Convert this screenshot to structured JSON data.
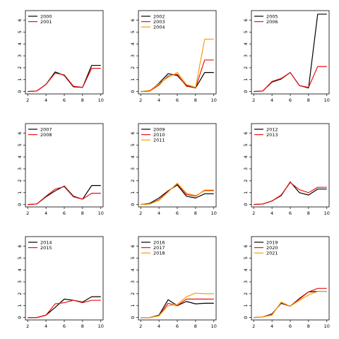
{
  "chart_data": [
    {
      "type": "line",
      "x": [
        2,
        3,
        4,
        5,
        6,
        7,
        8,
        9,
        10
      ],
      "xlim": [
        1.75,
        10.25
      ],
      "ylim": [
        -0.2,
        6.8
      ],
      "x_ticks": [
        2,
        4,
        6,
        8,
        10
      ],
      "y_ticks": [
        0,
        1,
        2,
        3,
        4,
        5,
        6
      ],
      "legend_position": "top-left",
      "series": [
        {
          "name": "2000",
          "color": "#000000",
          "values": [
            0.0,
            0.05,
            0.6,
            1.65,
            1.35,
            0.4,
            0.35,
            2.2,
            2.2
          ]
        },
        {
          "name": "2001",
          "color": "#ee1111",
          "values": [
            0.0,
            0.05,
            0.6,
            1.55,
            1.4,
            0.45,
            0.35,
            1.95,
            1.95
          ]
        }
      ]
    },
    {
      "type": "line",
      "x": [
        2,
        3,
        4,
        5,
        6,
        7,
        8,
        9,
        10
      ],
      "xlim": [
        1.75,
        10.25
      ],
      "ylim": [
        -0.2,
        6.8
      ],
      "x_ticks": [
        2,
        4,
        6,
        8,
        10
      ],
      "y_ticks": [
        0,
        1,
        2,
        3,
        4,
        5,
        6
      ],
      "legend_position": "top-left",
      "series": [
        {
          "name": "2002",
          "color": "#000000",
          "values": [
            0.0,
            0.05,
            0.7,
            1.5,
            1.35,
            0.5,
            0.3,
            1.6,
            1.6
          ]
        },
        {
          "name": "2003",
          "color": "#ee1111",
          "values": [
            0.0,
            0.05,
            0.55,
            1.3,
            1.45,
            0.45,
            0.3,
            2.65,
            2.65
          ]
        },
        {
          "name": "2004",
          "color": "#f5a000",
          "values": [
            0.0,
            0.1,
            0.65,
            1.2,
            1.6,
            0.6,
            0.35,
            4.4,
            4.4
          ]
        }
      ]
    },
    {
      "type": "line",
      "x": [
        2,
        3,
        4,
        5,
        6,
        7,
        8,
        9,
        10
      ],
      "xlim": [
        1.75,
        10.25
      ],
      "ylim": [
        -0.2,
        6.8
      ],
      "x_ticks": [
        2,
        4,
        6,
        8,
        10
      ],
      "y_ticks": [
        0,
        1,
        2,
        3,
        4,
        5,
        6
      ],
      "legend_position": "top-left",
      "series": [
        {
          "name": "2005",
          "color": "#000000",
          "values": [
            0.0,
            0.05,
            0.8,
            1.05,
            1.6,
            0.5,
            0.3,
            6.5,
            6.5
          ]
        },
        {
          "name": "2006",
          "color": "#ee1111",
          "values": [
            0.0,
            0.05,
            0.85,
            1.1,
            1.6,
            0.5,
            0.35,
            2.1,
            2.1
          ]
        }
      ]
    },
    {
      "type": "line",
      "x": [
        2,
        3,
        4,
        5,
        6,
        7,
        8,
        9,
        10
      ],
      "xlim": [
        1.75,
        10.25
      ],
      "ylim": [
        -0.2,
        6.8
      ],
      "x_ticks": [
        2,
        4,
        6,
        8,
        10
      ],
      "y_ticks": [
        0,
        1,
        2,
        3,
        4,
        5,
        6
      ],
      "legend_position": "top-left",
      "series": [
        {
          "name": "2007",
          "color": "#000000",
          "values": [
            0.0,
            0.05,
            0.65,
            1.15,
            1.55,
            0.7,
            0.45,
            1.6,
            1.6
          ]
        },
        {
          "name": "2008",
          "color": "#ee1111",
          "values": [
            0.0,
            0.05,
            0.7,
            1.3,
            1.5,
            0.65,
            0.45,
            0.95,
            0.95
          ]
        }
      ]
    },
    {
      "type": "line",
      "x": [
        2,
        3,
        4,
        5,
        6,
        7,
        8,
        9,
        10
      ],
      "xlim": [
        1.75,
        10.25
      ],
      "ylim": [
        -0.2,
        6.8
      ],
      "x_ticks": [
        2,
        4,
        6,
        8,
        10
      ],
      "y_ticks": [
        0,
        1,
        2,
        3,
        4,
        5,
        6
      ],
      "legend_position": "top-left",
      "series": [
        {
          "name": "2009",
          "color": "#000000",
          "values": [
            0.0,
            0.1,
            0.55,
            1.15,
            1.65,
            0.7,
            0.55,
            0.9,
            0.9
          ]
        },
        {
          "name": "2010",
          "color": "#ee1111",
          "values": [
            0.0,
            0.05,
            0.4,
            1.1,
            1.75,
            0.85,
            0.7,
            1.2,
            1.2
          ]
        },
        {
          "name": "2011",
          "color": "#f5a000",
          "values": [
            0.0,
            0.05,
            0.35,
            1.05,
            1.8,
            0.95,
            0.75,
            1.15,
            1.15
          ]
        }
      ]
    },
    {
      "type": "line",
      "x": [
        2,
        3,
        4,
        5,
        6,
        7,
        8,
        9,
        10
      ],
      "xlim": [
        1.75,
        10.25
      ],
      "ylim": [
        -0.2,
        6.8
      ],
      "x_ticks": [
        2,
        4,
        6,
        8,
        10
      ],
      "y_ticks": [
        0,
        1,
        2,
        3,
        4,
        5,
        6
      ],
      "legend_position": "top-left",
      "series": [
        {
          "name": "2012",
          "color": "#000000",
          "values": [
            0.0,
            0.05,
            0.3,
            0.75,
            1.9,
            1.0,
            0.8,
            1.3,
            1.3
          ]
        },
        {
          "name": "2013",
          "color": "#ee1111",
          "values": [
            0.0,
            0.05,
            0.3,
            0.8,
            1.85,
            1.25,
            1.0,
            1.45,
            1.45
          ]
        }
      ]
    },
    {
      "type": "line",
      "x": [
        2,
        3,
        4,
        5,
        6,
        7,
        8,
        9,
        10
      ],
      "xlim": [
        1.75,
        10.25
      ],
      "ylim": [
        -0.2,
        6.8
      ],
      "x_ticks": [
        2,
        4,
        6,
        8,
        10
      ],
      "y_ticks": [
        0,
        1,
        2,
        3,
        4,
        5,
        6
      ],
      "legend_position": "top-left",
      "series": [
        {
          "name": "2014",
          "color": "#000000",
          "values": [
            0.0,
            0.0,
            0.2,
            0.85,
            1.55,
            1.45,
            1.3,
            1.75,
            1.75
          ]
        },
        {
          "name": "2015",
          "color": "#ee1111",
          "values": [
            0.0,
            0.0,
            0.2,
            1.15,
            1.25,
            1.45,
            1.25,
            1.45,
            1.45
          ]
        }
      ]
    },
    {
      "type": "line",
      "x": [
        2,
        3,
        4,
        5,
        6,
        7,
        8,
        9,
        10
      ],
      "xlim": [
        1.75,
        10.25
      ],
      "ylim": [
        -0.2,
        6.8
      ],
      "x_ticks": [
        2,
        4,
        6,
        8,
        10
      ],
      "y_ticks": [
        0,
        1,
        2,
        3,
        4,
        5,
        6
      ],
      "legend_position": "top-left",
      "series": [
        {
          "name": "2016",
          "color": "#000000",
          "values": [
            0.0,
            0.0,
            0.2,
            1.5,
            1.0,
            1.35,
            1.15,
            1.2,
            1.2
          ]
        },
        {
          "name": "2017",
          "color": "#ee1111",
          "values": [
            0.0,
            0.0,
            0.15,
            1.2,
            1.0,
            1.55,
            1.55,
            1.55,
            1.55
          ]
        },
        {
          "name": "2018",
          "color": "#f5a000",
          "values": [
            0.0,
            0.0,
            0.15,
            1.0,
            1.1,
            1.75,
            2.05,
            2.0,
            2.0
          ]
        }
      ]
    },
    {
      "type": "line",
      "x": [
        2,
        3,
        4,
        5,
        6,
        7,
        8,
        9,
        10
      ],
      "xlim": [
        1.75,
        10.25
      ],
      "ylim": [
        -0.2,
        6.8
      ],
      "x_ticks": [
        2,
        4,
        6,
        8,
        10
      ],
      "y_ticks": [
        0,
        1,
        2,
        3,
        4,
        5,
        6
      ],
      "legend_position": "top-left",
      "series": [
        {
          "name": "2019",
          "color": "#000000",
          "values": [
            0.0,
            0.05,
            0.3,
            1.2,
            0.95,
            1.6,
            2.15,
            2.2,
            2.2
          ]
        },
        {
          "name": "2020",
          "color": "#ee1111",
          "values": [
            0.0,
            0.05,
            0.25,
            1.25,
            0.95,
            1.55,
            2.15,
            2.45,
            2.45
          ]
        },
        {
          "name": "2021",
          "color": "#f5a000",
          "values": [
            0.0,
            0.05,
            0.2,
            1.3,
            0.95,
            1.45,
            1.9,
            2.2,
            2.2
          ]
        }
      ]
    }
  ]
}
